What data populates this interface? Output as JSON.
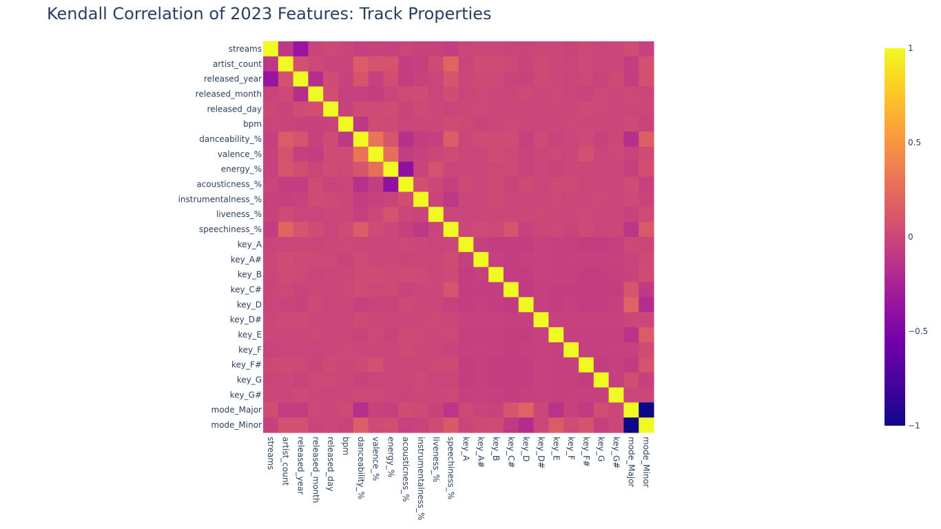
{
  "chart_data": {
    "type": "heatmap",
    "title": "Kendall Correlation of 2023 Features: Track Properties",
    "labels": [
      "streams",
      "artist_count",
      "released_year",
      "released_month",
      "released_day",
      "bpm",
      "danceability_%",
      "valence_%",
      "energy_%",
      "acousticness_%",
      "instrumentalness_%",
      "liveness_%",
      "speechiness_%",
      "key_A",
      "key_A#",
      "key_B",
      "key_C#",
      "key_D",
      "key_D#",
      "key_E",
      "key_F",
      "key_F#",
      "key_G",
      "key_G#",
      "mode_Major",
      "mode_Minor"
    ],
    "zmin": -1,
    "zmax": 1,
    "colorbar": {
      "ticks": [
        1,
        0.5,
        0,
        -0.5,
        -1
      ],
      "tick_labels": [
        "1",
        "0.5",
        "0",
        "−0.5",
        "−1"
      ]
    },
    "colorscale": [
      "#0d0887",
      "#46039f",
      "#7201a8",
      "#9c179e",
      "#bd3786",
      "#d8576b",
      "#ed7953",
      "#fb9f3a",
      "#fdca26",
      "#f0f921"
    ],
    "grid": false,
    "values": [
      [
        1,
        -0.1,
        -0.35,
        -0.02,
        0.01,
        -0.01,
        -0.05,
        -0.03,
        -0.04,
        -0.01,
        -0.03,
        -0.03,
        -0.07,
        -0.01,
        0,
        0,
        -0.01,
        -0.01,
        0,
        0,
        -0.02,
        0.01,
        -0.01,
        0,
        0.04,
        -0.04
      ],
      [
        -0.1,
        1,
        0.07,
        0.01,
        -0.02,
        -0.02,
        0.14,
        0.08,
        0.1,
        -0.07,
        -0.05,
        0.03,
        0.2,
        -0.01,
        0.04,
        0.03,
        0.01,
        -0.02,
        0.02,
        0,
        -0.01,
        0.02,
        0,
        0,
        -0.07,
        0.07
      ],
      [
        -0.35,
        0.07,
        1,
        -0.17,
        0.04,
        -0.03,
        0.1,
        -0.05,
        0.05,
        -0.06,
        -0.03,
        -0.01,
        0.09,
        0,
        0.02,
        0.02,
        -0.02,
        -0.03,
        0.02,
        0,
        -0.01,
        0.01,
        -0.02,
        0.02,
        -0.06,
        0.06
      ],
      [
        -0.02,
        0.01,
        -0.17,
        1,
        0.05,
        -0.04,
        -0.04,
        -0.06,
        -0.01,
        0.03,
        0.04,
        -0.01,
        0.04,
        -0.01,
        0.01,
        -0.01,
        0,
        0.02,
        0,
        0.01,
        -0.01,
        -0.02,
        0.01,
        0,
        0.01,
        -0.01
      ],
      [
        0.01,
        -0.02,
        0.04,
        0.05,
        1,
        -0.03,
        0.03,
        0.03,
        0.04,
        -0.02,
        0.02,
        0,
        -0.01,
        0,
        0.01,
        0,
        0,
        -0.01,
        0,
        0,
        0,
        0.02,
        0.01,
        -0.01,
        0,
        0
      ],
      [
        -0.01,
        -0.02,
        -0.03,
        -0.04,
        -0.03,
        1,
        -0.1,
        0.03,
        0.02,
        -0.01,
        0,
        0,
        0.03,
        0.01,
        -0.02,
        0,
        0.01,
        0,
        -0.01,
        0,
        0.01,
        0,
        0,
        0,
        0.02,
        -0.02
      ],
      [
        -0.05,
        0.14,
        0.1,
        -0.04,
        0.03,
        -0.1,
        1,
        0.3,
        0.1,
        -0.15,
        -0.07,
        -0.05,
        0.15,
        0,
        0.03,
        0.03,
        0.04,
        -0.04,
        0.02,
        -0.02,
        0,
        0.02,
        -0.03,
        0.01,
        -0.16,
        0.16
      ],
      [
        -0.03,
        0.08,
        -0.05,
        -0.06,
        0.03,
        0.03,
        0.3,
        1,
        0.27,
        -0.06,
        -0.04,
        0,
        0.03,
        0,
        0,
        0.04,
        0.01,
        -0.02,
        0,
        0.01,
        0,
        0.06,
        -0.01,
        0.01,
        -0.03,
        0.03
      ],
      [
        -0.04,
        0.1,
        0.05,
        -0.01,
        0.04,
        0.02,
        0.1,
        0.27,
        1,
        -0.4,
        -0.02,
        0.08,
        0,
        0,
        0,
        0.01,
        0.02,
        -0.02,
        0,
        -0.02,
        0,
        0,
        0,
        0,
        -0.05,
        0.05
      ],
      [
        -0.01,
        -0.07,
        -0.06,
        0.03,
        -0.02,
        -0.01,
        -0.15,
        -0.06,
        -0.4,
        1,
        0.05,
        0,
        -0.05,
        0.01,
        -0.01,
        0.03,
        -0.02,
        0.02,
        0,
        0.02,
        0.02,
        0,
        0,
        -0.01,
        0.04,
        -0.04
      ],
      [
        -0.03,
        -0.05,
        -0.03,
        0.04,
        0.02,
        0,
        -0.07,
        -0.04,
        -0.02,
        0.05,
        1,
        -0.02,
        -0.1,
        0,
        0,
        0.02,
        0,
        0,
        0,
        0.01,
        0,
        0,
        0.01,
        0,
        0.02,
        -0.02
      ],
      [
        -0.03,
        0.03,
        -0.01,
        -0.01,
        0,
        0,
        -0.05,
        0,
        0.08,
        0,
        -0.02,
        1,
        -0.01,
        -0.01,
        0,
        0,
        0,
        0,
        0.01,
        0,
        0,
        0.01,
        -0.01,
        0,
        -0.03,
        0.03
      ],
      [
        -0.07,
        0.2,
        0.09,
        0.04,
        -0.01,
        0.03,
        0.15,
        0.03,
        0,
        -0.05,
        -0.1,
        -0.01,
        1,
        0,
        0.03,
        0.02,
        0.09,
        -0.04,
        0,
        0.01,
        -0.02,
        0.02,
        -0.01,
        0.01,
        -0.12,
        0.12
      ],
      [
        -0.01,
        -0.01,
        0,
        -0.01,
        0,
        0.01,
        0,
        0,
        0,
        0.01,
        0,
        -0.01,
        0,
        1,
        -0.05,
        -0.06,
        -0.07,
        -0.06,
        -0.04,
        -0.05,
        -0.05,
        -0.06,
        -0.06,
        -0.05,
        0.01,
        -0.01
      ],
      [
        0,
        0.04,
        0.02,
        0.01,
        0.01,
        -0.02,
        0.03,
        0,
        0,
        -0.01,
        0,
        0,
        0.03,
        -0.05,
        1,
        -0.05,
        -0.06,
        -0.05,
        -0.04,
        -0.05,
        -0.04,
        -0.05,
        -0.05,
        -0.04,
        -0.02,
        0.02
      ],
      [
        0,
        0.03,
        0.02,
        -0.01,
        0,
        0,
        0.03,
        0.04,
        0.01,
        0.03,
        0.02,
        0,
        0.02,
        -0.06,
        -0.05,
        1,
        -0.07,
        -0.06,
        -0.04,
        -0.05,
        -0.05,
        -0.06,
        -0.06,
        -0.05,
        -0.03,
        0.03
      ],
      [
        -0.01,
        0.01,
        -0.02,
        0,
        0,
        0.01,
        0.04,
        0.01,
        0.02,
        -0.02,
        0,
        0,
        0.09,
        -0.07,
        -0.06,
        -0.07,
        1,
        -0.08,
        -0.05,
        -0.06,
        -0.06,
        -0.07,
        -0.07,
        -0.06,
        0.09,
        -0.09
      ],
      [
        -0.01,
        -0.02,
        -0.03,
        0.02,
        -0.01,
        0,
        -0.04,
        -0.02,
        -0.02,
        0.02,
        0,
        0,
        -0.04,
        -0.06,
        -0.05,
        -0.06,
        -0.08,
        1,
        -0.05,
        -0.06,
        -0.05,
        -0.06,
        -0.06,
        -0.05,
        0.18,
        -0.18
      ],
      [
        0,
        0.02,
        0.02,
        0,
        0,
        -0.01,
        0.02,
        0,
        0,
        0,
        0,
        0.01,
        0,
        -0.04,
        -0.04,
        -0.04,
        -0.05,
        -0.05,
        1,
        -0.04,
        -0.04,
        -0.04,
        -0.04,
        -0.04,
        0,
        0
      ],
      [
        0,
        0,
        0,
        0.01,
        0,
        0,
        -0.02,
        0.01,
        -0.02,
        0.02,
        0.01,
        0,
        0.01,
        -0.05,
        -0.05,
        -0.05,
        -0.06,
        -0.06,
        -0.04,
        1,
        -0.05,
        -0.05,
        -0.05,
        -0.05,
        -0.14,
        0.14
      ],
      [
        -0.02,
        -0.01,
        -0.01,
        -0.01,
        0,
        0.01,
        0,
        0,
        0,
        0.02,
        0,
        0,
        -0.02,
        -0.05,
        -0.04,
        -0.05,
        -0.06,
        -0.05,
        -0.04,
        -0.05,
        1,
        -0.05,
        -0.05,
        -0.04,
        -0.04,
        0.04
      ],
      [
        0.01,
        0.02,
        0.01,
        -0.02,
        0.02,
        0,
        0.02,
        0.06,
        0,
        0,
        0,
        0.01,
        0.02,
        -0.06,
        -0.05,
        -0.06,
        -0.07,
        -0.06,
        -0.04,
        -0.05,
        -0.05,
        1,
        -0.06,
        -0.05,
        -0.08,
        0.08
      ],
      [
        -0.01,
        0,
        -0.02,
        0.01,
        0.01,
        0,
        -0.03,
        -0.01,
        0,
        0,
        0.01,
        -0.01,
        -0.01,
        -0.06,
        -0.05,
        -0.06,
        -0.07,
        -0.06,
        -0.04,
        -0.05,
        -0.05,
        -0.06,
        1,
        -0.05,
        0.05,
        -0.05
      ],
      [
        0,
        0,
        0.02,
        0,
        -0.01,
        0,
        0.01,
        0.01,
        0,
        -0.01,
        0,
        0,
        0.01,
        -0.05,
        -0.04,
        -0.05,
        -0.06,
        -0.05,
        -0.04,
        -0.05,
        -0.04,
        -0.05,
        -0.05,
        1,
        0,
        0
      ],
      [
        0.04,
        -0.07,
        -0.06,
        0.01,
        0,
        0.02,
        -0.16,
        -0.03,
        -0.05,
        0.04,
        0.02,
        -0.03,
        -0.12,
        0.01,
        -0.02,
        -0.03,
        0.09,
        0.18,
        0,
        -0.14,
        -0.04,
        -0.08,
        0.05,
        0,
        1,
        -1
      ],
      [
        -0.04,
        0.07,
        0.06,
        -0.01,
        0,
        -0.02,
        0.16,
        0.03,
        0.05,
        -0.04,
        -0.02,
        0.03,
        0.12,
        -0.01,
        0.02,
        0.03,
        -0.09,
        -0.18,
        0,
        0.14,
        0.04,
        0.08,
        -0.05,
        0,
        -1,
        1
      ]
    ]
  }
}
